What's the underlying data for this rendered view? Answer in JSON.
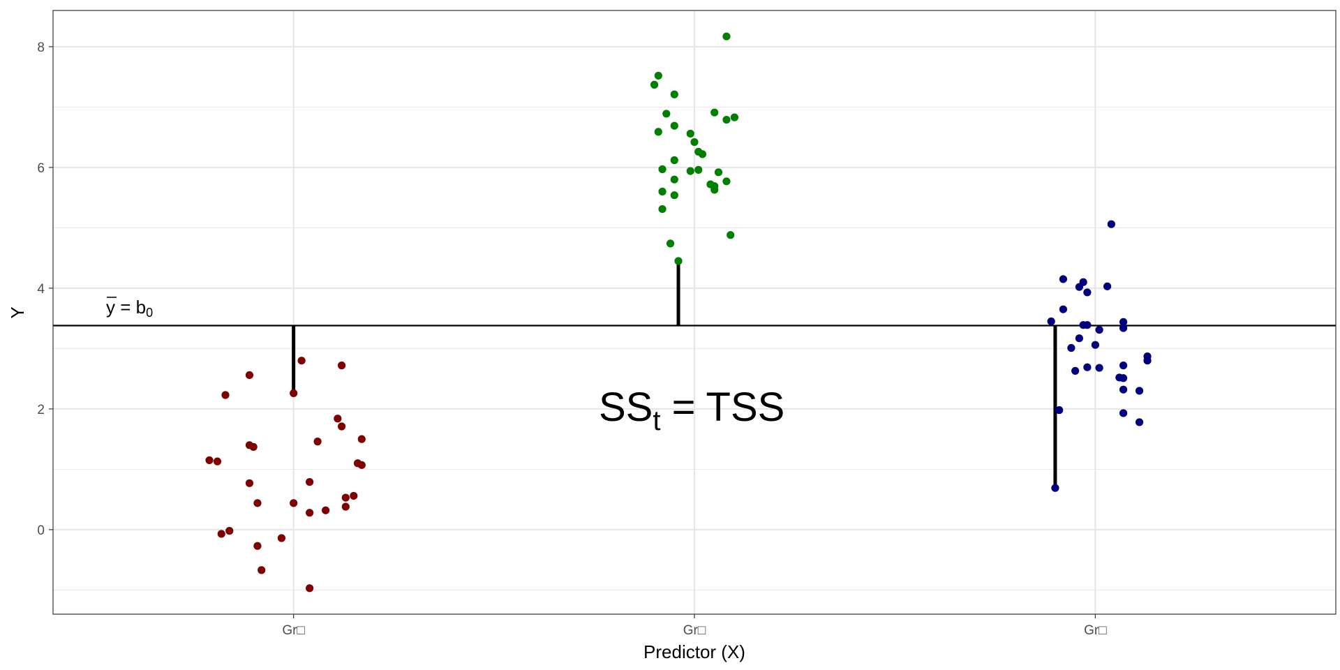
{
  "chart_data": {
    "type": "scatter",
    "title": "",
    "xlabel": "Predictor (X)",
    "ylabel": "Y",
    "categories": [
      "Gr□",
      "Gr□",
      "Gr□"
    ],
    "yticks": [
      "0",
      "2",
      "4",
      "6",
      "8"
    ],
    "ylim": [
      -1.4,
      8.6
    ],
    "grid": true,
    "mean_line": {
      "value": 3.38,
      "label_main": "y",
      "label_eq": " = b",
      "label_sub": "0"
    },
    "annotation": {
      "main": "SS",
      "sub": "t",
      "rest": " = TSS"
    },
    "series": [
      {
        "category_index": 0,
        "color": "#7f0000",
        "points": [
          {
            "dx": 0.02,
            "y": 2.8
          },
          {
            "dx": 0.12,
            "y": 2.72
          },
          {
            "dx": -0.11,
            "y": 2.56
          },
          {
            "dx": 0.0,
            "y": 2.26
          },
          {
            "dx": -0.17,
            "y": 2.23
          },
          {
            "dx": 0.11,
            "y": 1.84
          },
          {
            "dx": 0.12,
            "y": 1.71
          },
          {
            "dx": 0.17,
            "y": 1.5
          },
          {
            "dx": 0.06,
            "y": 1.46
          },
          {
            "dx": -0.11,
            "y": 1.4
          },
          {
            "dx": -0.1,
            "y": 1.37
          },
          {
            "dx": -0.21,
            "y": 1.15
          },
          {
            "dx": -0.19,
            "y": 1.13
          },
          {
            "dx": 0.16,
            "y": 1.1
          },
          {
            "dx": 0.17,
            "y": 1.07
          },
          {
            "dx": -0.11,
            "y": 0.77
          },
          {
            "dx": 0.04,
            "y": 0.79
          },
          {
            "dx": 0.15,
            "y": 0.56
          },
          {
            "dx": 0.13,
            "y": 0.53
          },
          {
            "dx": -0.09,
            "y": 0.44
          },
          {
            "dx": 0.0,
            "y": 0.44
          },
          {
            "dx": 0.13,
            "y": 0.38
          },
          {
            "dx": 0.08,
            "y": 0.32
          },
          {
            "dx": 0.04,
            "y": 0.28
          },
          {
            "dx": -0.16,
            "y": -0.02
          },
          {
            "dx": -0.18,
            "y": -0.07
          },
          {
            "dx": -0.03,
            "y": -0.14
          },
          {
            "dx": -0.09,
            "y": -0.27
          },
          {
            "dx": -0.08,
            "y": -0.67
          },
          {
            "dx": 0.04,
            "y": -0.97
          }
        ]
      },
      {
        "category_index": 1,
        "color": "#007f00",
        "points": [
          {
            "dx": 0.08,
            "y": 8.17
          },
          {
            "dx": -0.09,
            "y": 7.52
          },
          {
            "dx": -0.1,
            "y": 7.37
          },
          {
            "dx": -0.05,
            "y": 7.21
          },
          {
            "dx": 0.05,
            "y": 6.91
          },
          {
            "dx": -0.07,
            "y": 6.89
          },
          {
            "dx": 0.1,
            "y": 6.83
          },
          {
            "dx": 0.08,
            "y": 6.79
          },
          {
            "dx": -0.05,
            "y": 6.69
          },
          {
            "dx": -0.09,
            "y": 6.59
          },
          {
            "dx": -0.01,
            "y": 6.56
          },
          {
            "dx": 0.0,
            "y": 6.42
          },
          {
            "dx": 0.01,
            "y": 6.26
          },
          {
            "dx": 0.02,
            "y": 6.22
          },
          {
            "dx": -0.05,
            "y": 6.12
          },
          {
            "dx": -0.08,
            "y": 5.97
          },
          {
            "dx": 0.01,
            "y": 5.96
          },
          {
            "dx": -0.01,
            "y": 5.94
          },
          {
            "dx": 0.06,
            "y": 5.92
          },
          {
            "dx": -0.05,
            "y": 5.8
          },
          {
            "dx": 0.08,
            "y": 5.77
          },
          {
            "dx": 0.04,
            "y": 5.72
          },
          {
            "dx": 0.05,
            "y": 5.69
          },
          {
            "dx": 0.05,
            "y": 5.63
          },
          {
            "dx": -0.08,
            "y": 5.6
          },
          {
            "dx": -0.05,
            "y": 5.54
          },
          {
            "dx": -0.08,
            "y": 5.31
          },
          {
            "dx": 0.09,
            "y": 4.88
          },
          {
            "dx": -0.06,
            "y": 4.74
          },
          {
            "dx": -0.04,
            "y": 4.45
          }
        ]
      },
      {
        "category_index": 2,
        "color": "#00007f",
        "points": [
          {
            "dx": 0.04,
            "y": 5.06
          },
          {
            "dx": -0.08,
            "y": 4.15
          },
          {
            "dx": -0.03,
            "y": 4.1
          },
          {
            "dx": 0.03,
            "y": 4.03
          },
          {
            "dx": -0.04,
            "y": 4.02
          },
          {
            "dx": -0.02,
            "y": 3.93
          },
          {
            "dx": -0.08,
            "y": 3.65
          },
          {
            "dx": -0.11,
            "y": 3.45
          },
          {
            "dx": 0.07,
            "y": 3.44
          },
          {
            "dx": -0.02,
            "y": 3.39
          },
          {
            "dx": -0.03,
            "y": 3.39
          },
          {
            "dx": 0.07,
            "y": 3.34
          },
          {
            "dx": 0.01,
            "y": 3.31
          },
          {
            "dx": -0.04,
            "y": 3.17
          },
          {
            "dx": 0.0,
            "y": 3.06
          },
          {
            "dx": -0.06,
            "y": 3.01
          },
          {
            "dx": 0.13,
            "y": 2.87
          },
          {
            "dx": 0.13,
            "y": 2.8
          },
          {
            "dx": 0.07,
            "y": 2.72
          },
          {
            "dx": -0.02,
            "y": 2.69
          },
          {
            "dx": 0.01,
            "y": 2.68
          },
          {
            "dx": -0.05,
            "y": 2.63
          },
          {
            "dx": 0.06,
            "y": 2.52
          },
          {
            "dx": 0.07,
            "y": 2.51
          },
          {
            "dx": 0.07,
            "y": 2.32
          },
          {
            "dx": 0.11,
            "y": 2.3
          },
          {
            "dx": -0.09,
            "y": 1.98
          },
          {
            "dx": 0.07,
            "y": 1.93
          },
          {
            "dx": 0.11,
            "y": 1.78
          },
          {
            "dx": -0.1,
            "y": 0.69
          }
        ]
      }
    ],
    "residual_segments": [
      {
        "category_index": 0,
        "dx": 0.0,
        "y": 2.26
      },
      {
        "category_index": 1,
        "dx": -0.04,
        "y": 4.45
      },
      {
        "category_index": 2,
        "dx": -0.1,
        "y": 0.69
      }
    ]
  }
}
